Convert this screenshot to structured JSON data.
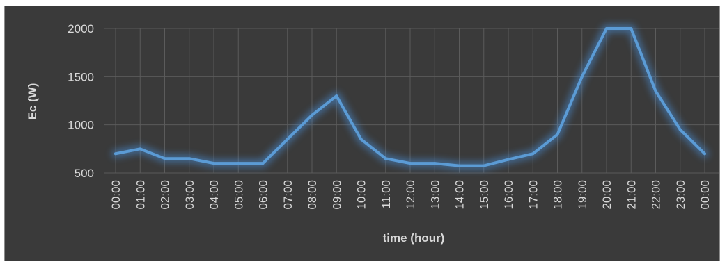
{
  "chart_data": {
    "type": "line",
    "title": "",
    "xlabel": "time (hour)",
    "ylabel": "Ec (W)",
    "ylim": [
      500,
      2000
    ],
    "yticks": [
      "500",
      "1000",
      "1500",
      "2000"
    ],
    "grid": true,
    "colors": {
      "background": "#3a3a3a",
      "line": "#5b9bd5",
      "glow": "#4a8fd8",
      "text": "#d9d9d9",
      "grid": "#5b5b5b"
    },
    "categories": [
      "00:00",
      "01:00",
      "02:00",
      "03:00",
      "04:00",
      "05:00",
      "06:00",
      "07:00",
      "08:00",
      "09:00",
      "10:00",
      "11:00",
      "12:00",
      "13:00",
      "14:00",
      "15:00",
      "16:00",
      "17:00",
      "18:00",
      "19:00",
      "20:00",
      "21:00",
      "22:00",
      "23:00",
      "00:00"
    ],
    "series": [
      {
        "values": [
          700,
          750,
          650,
          650,
          600,
          600,
          600,
          850,
          1100,
          1300,
          850,
          650,
          600,
          600,
          575,
          575,
          640,
          700,
          900,
          1500,
          2000,
          2000,
          1350,
          950,
          700
        ]
      }
    ]
  }
}
